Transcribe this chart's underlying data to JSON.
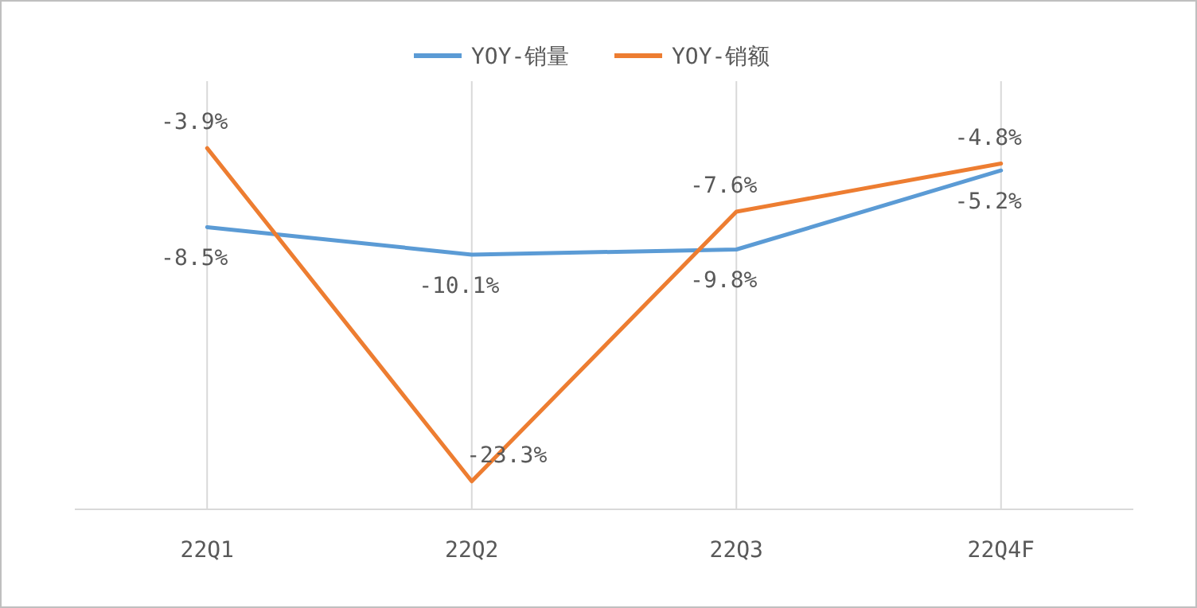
{
  "chart_data": {
    "type": "line",
    "categories": [
      "22Q1",
      "22Q2",
      "22Q3",
      "22Q4F"
    ],
    "series": [
      {
        "name": "YOY-销量",
        "color": "#5b9bd5",
        "values": [
          -8.5,
          -10.1,
          -9.8,
          -5.2
        ],
        "value_labels": [
          "-8.5%",
          "-10.1%",
          "-9.8%",
          "-5.2%"
        ]
      },
      {
        "name": "YOY-销额",
        "color": "#ed7d31",
        "values": [
          -3.9,
          -23.3,
          -7.6,
          -4.8
        ],
        "value_labels": [
          "-3.9%",
          "-23.3%",
          "-7.6%",
          "-4.8%"
        ]
      }
    ],
    "grid": "x",
    "legend": "top",
    "marker": "none",
    "line_style": "solid"
  }
}
